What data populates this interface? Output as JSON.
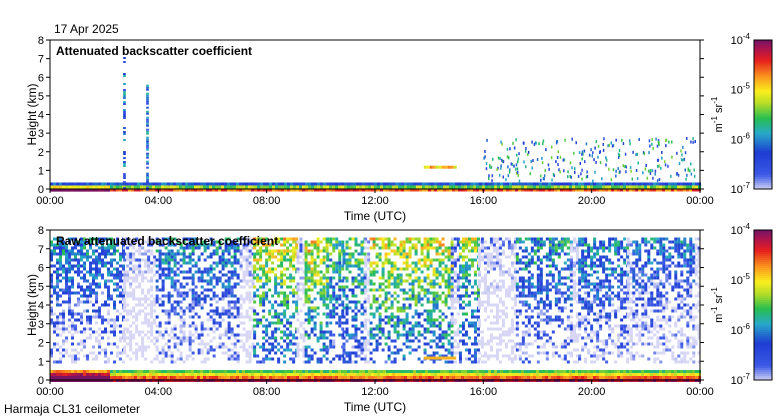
{
  "date": "17 Apr 2025",
  "station": "Harmaja CL31 ceilometer",
  "chart_data": [
    {
      "type": "heatmap",
      "title": "Attenuated backscatter coefficient",
      "xlabel": "Time (UTC)",
      "ylabel": "Height (km)",
      "xticks": [
        "00:00",
        "04:00",
        "08:00",
        "12:00",
        "16:00",
        "20:00",
        "00:00"
      ],
      "xlim_hours": [
        0,
        24
      ],
      "ylim": [
        0,
        8
      ],
      "yticks": [
        0,
        1,
        2,
        3,
        4,
        5,
        6,
        7,
        8
      ],
      "colorbar": {
        "scale": "log",
        "range": [
          1e-07,
          0.0001
        ],
        "tick_labels": [
          {
            "base": "10",
            "exp": "-4"
          },
          {
            "base": "10",
            "exp": "-5"
          },
          {
            "base": "10",
            "exp": "-6"
          },
          {
            "base": "10",
            "exp": "-7"
          }
        ],
        "unit": {
          "m": "m",
          "m_exp": "-1",
          "sr": "sr",
          "sr_exp": "-1"
        }
      },
      "features": [
        {
          "name": "surface layer",
          "start_h": 0,
          "end_h": 24,
          "top_km": 0.35,
          "log10_value": -5.0
        },
        {
          "name": "near-surface strong return",
          "start_h": 0,
          "end_h": 2.2,
          "top_km": 0.18,
          "log10_value": -4.2
        },
        {
          "name": "precipitation streak",
          "start_h": 2.7,
          "end_h": 2.8,
          "top_km": 7.3,
          "log10_value": -6.2
        },
        {
          "name": "precipitation streak",
          "start_h": 3.55,
          "end_h": 3.65,
          "top_km": 5.6,
          "log10_value": -6.2
        },
        {
          "name": "elevated layer",
          "start_h": 13.8,
          "end_h": 15.0,
          "base_km": 1.1,
          "top_km": 1.25,
          "log10_value": -4.9
        },
        {
          "name": "scattered cloud returns",
          "start_h": 16.0,
          "end_h": 23.8,
          "base_km": 0.5,
          "top_km": 2.8,
          "log10_value": -6.2
        }
      ]
    },
    {
      "type": "heatmap",
      "title": "Raw attenuated backscatter coefficient",
      "xlabel": "Time (UTC)",
      "ylabel": "Height (km)",
      "xticks": [
        "00:00",
        "04:00",
        "08:00",
        "12:00",
        "16:00",
        "20:00",
        "00:00"
      ],
      "xlim_hours": [
        0,
        24
      ],
      "ylim": [
        0,
        8
      ],
      "yticks": [
        0,
        1,
        2,
        3,
        4,
        5,
        6,
        7,
        8
      ],
      "colorbar": {
        "scale": "log",
        "range": [
          1e-07,
          0.0001
        ],
        "tick_labels": [
          {
            "base": "10",
            "exp": "-4"
          },
          {
            "base": "10",
            "exp": "-5"
          },
          {
            "base": "10",
            "exp": "-6"
          },
          {
            "base": "10",
            "exp": "-7"
          }
        ],
        "unit": {
          "m": "m",
          "m_exp": "-1",
          "sr": "sr",
          "sr_exp": "-1"
        }
      },
      "noise_segments": [
        {
          "start_h": 0.0,
          "end_h": 2.7,
          "log10_value": -5.9
        },
        {
          "start_h": 2.7,
          "end_h": 3.9,
          "log10_value": -6.9
        },
        {
          "start_h": 3.9,
          "end_h": 7.0,
          "log10_value": -5.9
        },
        {
          "start_h": 7.0,
          "end_h": 7.5,
          "log10_value": -6.9
        },
        {
          "start_h": 7.5,
          "end_h": 9.1,
          "log10_value": -5.1
        },
        {
          "start_h": 9.1,
          "end_h": 9.4,
          "log10_value": -6.9
        },
        {
          "start_h": 9.4,
          "end_h": 10.2,
          "log10_value": -5.0
        },
        {
          "start_h": 10.2,
          "end_h": 10.8,
          "log10_value": -5.5
        },
        {
          "start_h": 10.8,
          "end_h": 11.6,
          "log10_value": -5.4
        },
        {
          "start_h": 11.6,
          "end_h": 11.8,
          "log10_value": -6.9
        },
        {
          "start_h": 11.8,
          "end_h": 14.8,
          "log10_value": -5.1
        },
        {
          "start_h": 14.8,
          "end_h": 15.1,
          "log10_value": -6.5
        },
        {
          "start_h": 15.1,
          "end_h": 15.8,
          "log10_value": -5.3
        },
        {
          "start_h": 15.8,
          "end_h": 17.2,
          "log10_value": -6.9
        },
        {
          "start_h": 17.2,
          "end_h": 19.2,
          "log10_value": -5.8
        },
        {
          "start_h": 19.2,
          "end_h": 19.5,
          "log10_value": -6.9
        },
        {
          "start_h": 19.5,
          "end_h": 21.3,
          "log10_value": -5.9
        },
        {
          "start_h": 21.3,
          "end_h": 21.5,
          "log10_value": -6.9
        },
        {
          "start_h": 21.5,
          "end_h": 23.8,
          "log10_value": -6.1
        },
        {
          "start_h": 23.8,
          "end_h": 24.0,
          "log10_value": -6.9
        }
      ],
      "data_top_km": 7.6
    }
  ],
  "colors": {
    "background": "#ffffff",
    "axis": "#000000",
    "no_data": "#ffffff"
  }
}
